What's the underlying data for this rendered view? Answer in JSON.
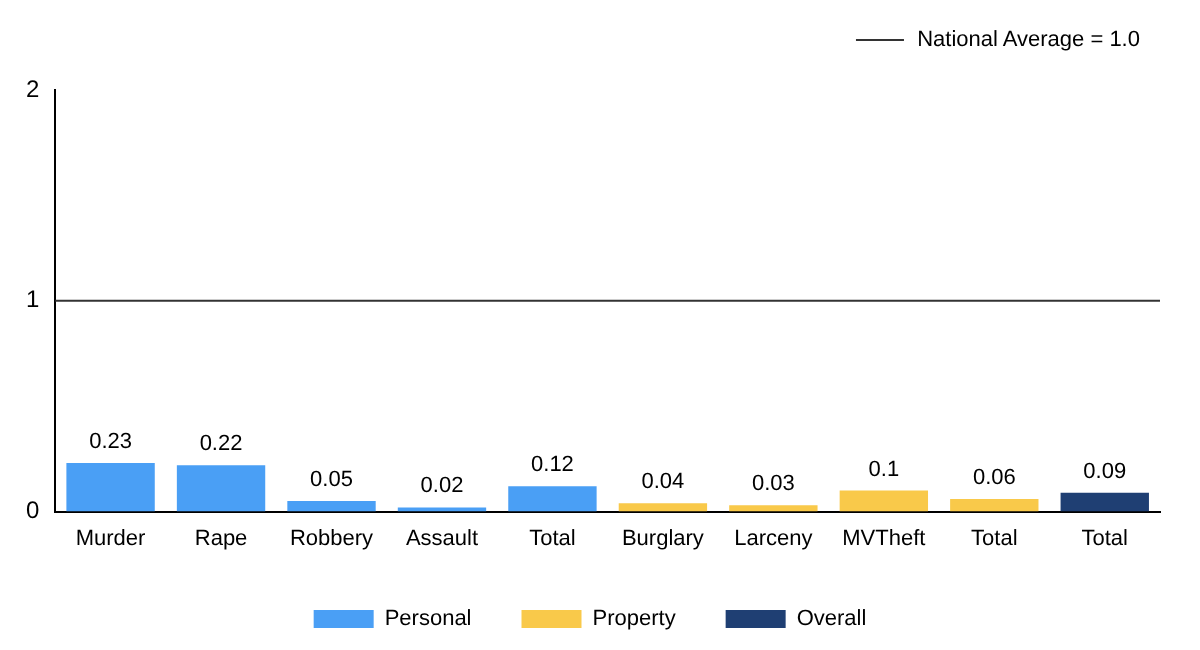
{
  "chart_data": {
    "type": "bar",
    "categories": [
      "Murder",
      "Rape",
      "Robbery",
      "Assault",
      "Total",
      "Burglary",
      "Larceny",
      "MVTheft",
      "Total",
      "Total"
    ],
    "series": [
      {
        "name": "Personal",
        "color": "#4a9ff5",
        "values": [
          0.23,
          0.22,
          0.05,
          0.02,
          0.12,
          null,
          null,
          null,
          null,
          null
        ]
      },
      {
        "name": "Property",
        "color": "#f9c94a",
        "values": [
          null,
          null,
          null,
          null,
          null,
          0.04,
          0.03,
          0.1,
          0.06,
          null
        ]
      },
      {
        "name": "Overall",
        "color": "#1f3f73",
        "values": [
          null,
          null,
          null,
          null,
          null,
          null,
          null,
          null,
          null,
          0.09
        ]
      }
    ],
    "ylim": [
      0,
      2
    ],
    "yticks": [
      0,
      1,
      2
    ],
    "legend": "bottom",
    "data_labels": true,
    "ref_lines": [
      {
        "axis": "y",
        "value": 1,
        "label": "National Average = 1.0",
        "color": "#333333"
      }
    ]
  }
}
